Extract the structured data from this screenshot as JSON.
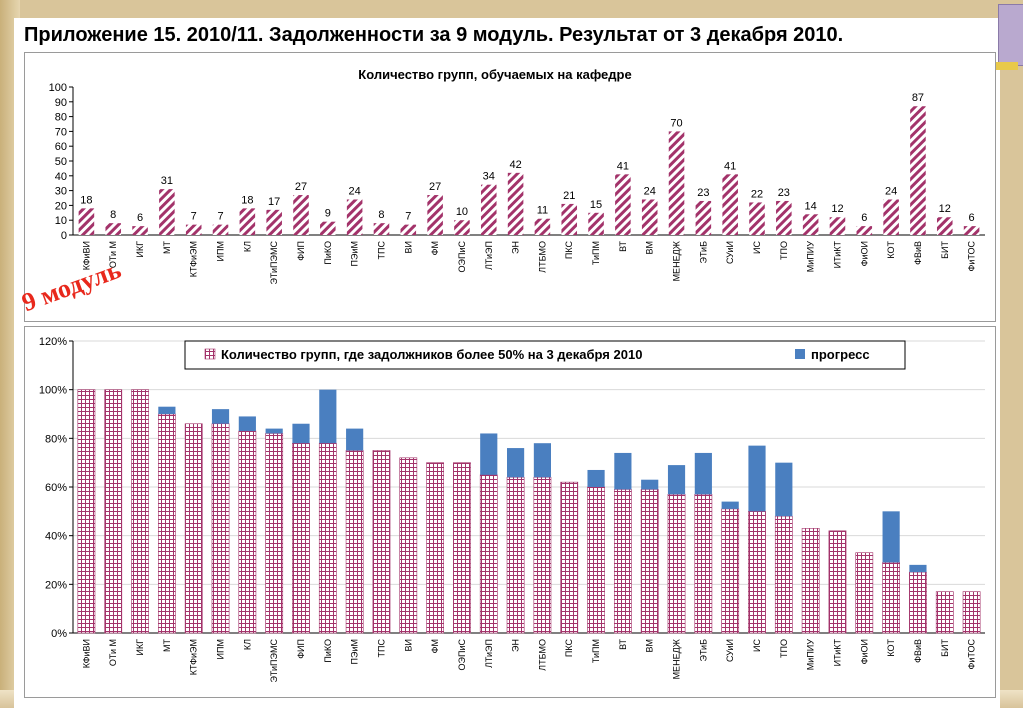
{
  "title": "Приложение 15. 2010/11. Задолженности за 9 модуль. Результат от 3 декабря 2010.",
  "module_label": "9 модуль",
  "colors": {
    "bar1": "#a3336a",
    "bar2_main": "#a3336a",
    "bar2_progress": "#4a7fc0"
  },
  "chart_data": [
    {
      "type": "bar",
      "title": "Количество групп, обучаемых на кафедре",
      "categories": [
        "КФиВИ",
        "ОТи М",
        "ИКГ",
        "МТ",
        "КТФиЭМ",
        "ИПМ",
        "КЛ",
        "ЭТиПЭМС",
        "ФИП",
        "ПиКО",
        "ПЭиМ",
        "ТПС",
        "ВИ",
        "ФМ",
        "ОЭПиС",
        "ЛТиЭП",
        "ЭН",
        "ЛТБМО",
        "ПКС",
        "ТиПМ",
        "ВТ",
        "ВМ",
        "МЕНЕДЖ",
        "ЭТиБ",
        "СУиИ",
        "ИС",
        "ТПО",
        "МиПИУ",
        "ИТиКТ",
        "ФиОИ",
        "КОТ",
        "ФВиВ",
        "БИТ",
        "ФиТОС"
      ],
      "values": [
        18,
        8,
        6,
        31,
        7,
        7,
        18,
        17,
        27,
        9,
        24,
        8,
        7,
        27,
        10,
        34,
        42,
        11,
        21,
        15,
        41,
        24,
        70,
        23,
        41,
        22,
        23,
        14,
        12,
        6,
        24,
        87,
        12,
        6
      ],
      "ylim": [
        0,
        100
      ],
      "yticks": [
        "0",
        "10",
        "20",
        "30",
        "40",
        "50",
        "60",
        "70",
        "80",
        "90",
        "100"
      ],
      "pattern": "diagonal-hatch"
    },
    {
      "type": "bar",
      "stacked": true,
      "categories": [
        "КФиВИ",
        "ОТи М",
        "ИКГ",
        "МТ",
        "КТФиЭМ",
        "ИПМ",
        "КЛ",
        "ЭТиПЭМС",
        "ФИП",
        "ПиКО",
        "ПЭиМ",
        "ТПС",
        "ВИ",
        "ФМ",
        "ОЭПиС",
        "ЛТиЭП",
        "ЭН",
        "ЛТБМО",
        "ПКС",
        "ТиПМ",
        "ВТ",
        "ВМ",
        "МЕНЕДЖ",
        "ЭТиБ",
        "СУиИ",
        "ИС",
        "ТПО",
        "МиПИУ",
        "ИТиКТ",
        "ФиОИ",
        "КОТ",
        "ФВиВ",
        "БИТ",
        "ФиТОС"
      ],
      "series": [
        {
          "name": "Количество групп, где задолжников более  50% на 3 декабря 2010",
          "pattern": "grid",
          "values": [
            100,
            100,
            100,
            90,
            86,
            86,
            83,
            82,
            78,
            78,
            75,
            75,
            72,
            70,
            70,
            65,
            64,
            64,
            62,
            60,
            59,
            59,
            57,
            57,
            51,
            50,
            48,
            43,
            42,
            33,
            29,
            25,
            17,
            17
          ]
        },
        {
          "name": "прогресс",
          "values": [
            0,
            0,
            0,
            3,
            0,
            6,
            6,
            2,
            8,
            22,
            9,
            0,
            0,
            0,
            0,
            17,
            12,
            14,
            0,
            7,
            15,
            4,
            12,
            17,
            3,
            27,
            22,
            0,
            0,
            0,
            21,
            3,
            0,
            0
          ]
        }
      ],
      "ylim": [
        0,
        120
      ],
      "yticks": [
        "0%",
        "20%",
        "40%",
        "60%",
        "80%",
        "100%",
        "120%"
      ],
      "legend_position": "top"
    }
  ]
}
